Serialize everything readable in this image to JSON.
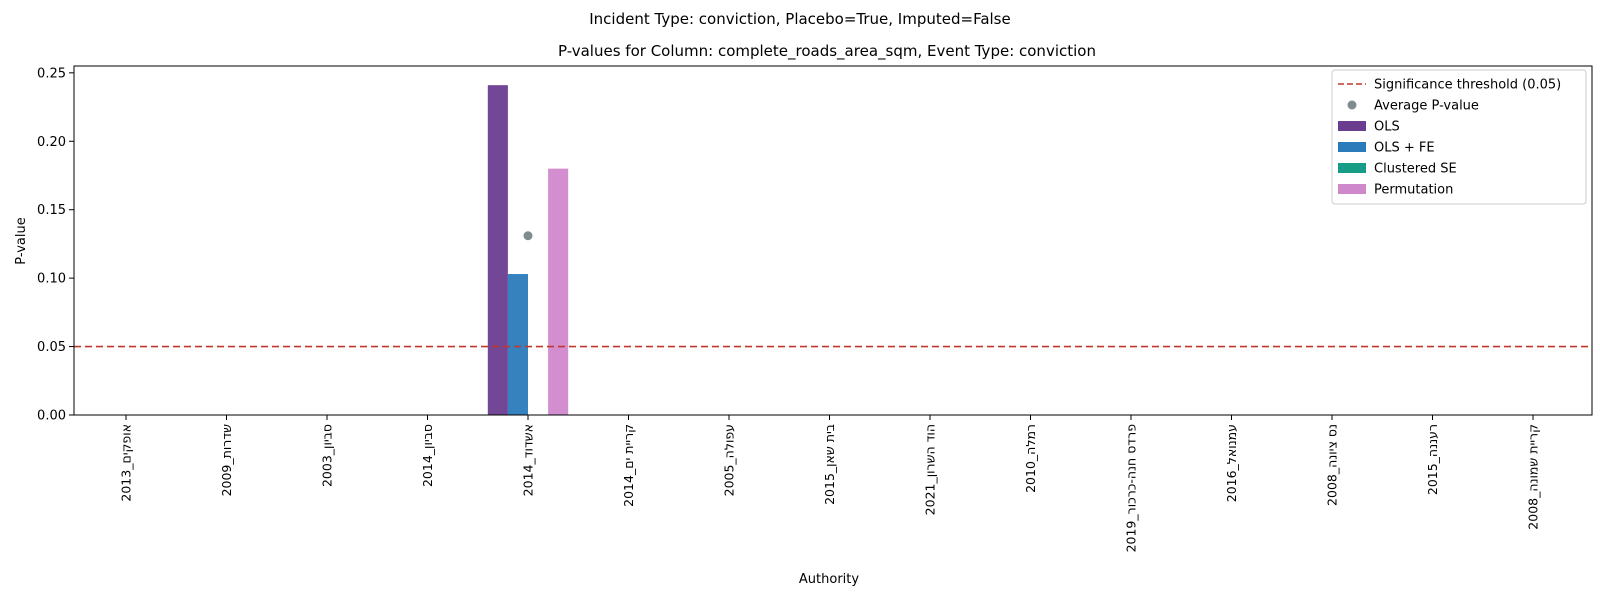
{
  "figure": {
    "suptitle": "Incident Type: conviction, Placebo=True, Imputed=False"
  },
  "chart_data": {
    "type": "bar",
    "title": "P-values for Column: complete_roads_area_sqm, Event Type: conviction",
    "xlabel": "Authority",
    "ylabel": "P-value",
    "ylim": [
      0,
      0.255
    ],
    "yticks": [
      "0.00",
      "0.05",
      "0.10",
      "0.15",
      "0.20",
      "0.25"
    ],
    "grid": false,
    "legend_position": "top-right",
    "categories": [
      "אופקים_2013",
      "שדרות_2009",
      "סביון_2003",
      "סביון_2014",
      "אשדוד_2014",
      "קריית ים_2014",
      "עפולה_2005",
      "בית שאן_2015",
      "הוד השרון_2021",
      "רמלה_2010",
      "פרדס חנה-כרכור_2019",
      "עמנואל_2016",
      "נס ציונה_2008",
      "רעננה_2015",
      "קריית שמונה_2008"
    ],
    "series": [
      {
        "name": "OLS",
        "color": "#6a3d8f",
        "values": [
          null,
          null,
          null,
          null,
          0.241,
          null,
          null,
          null,
          null,
          null,
          null,
          null,
          null,
          null,
          null
        ]
      },
      {
        "name": "OLS + FE",
        "color": "#2b7bba",
        "values": [
          null,
          null,
          null,
          null,
          0.103,
          null,
          null,
          null,
          null,
          null,
          null,
          null,
          null,
          null,
          null
        ]
      },
      {
        "name": "Clustered SE",
        "color": "#179c86",
        "values": [
          null,
          null,
          null,
          null,
          null,
          null,
          null,
          null,
          null,
          null,
          null,
          null,
          null,
          null,
          null
        ]
      },
      {
        "name": "Permutation",
        "color": "#d088cc",
        "values": [
          null,
          null,
          null,
          null,
          0.18,
          null,
          null,
          null,
          null,
          null,
          null,
          null,
          null,
          null,
          null
        ]
      }
    ],
    "average_points": {
      "name": "Average P-value",
      "color": "#7f8c8d",
      "values": [
        null,
        null,
        null,
        null,
        0.131,
        null,
        null,
        null,
        null,
        null,
        null,
        null,
        null,
        null,
        null
      ]
    },
    "threshold": {
      "name": "Significance threshold (0.05)",
      "value": 0.05,
      "color": "#c0392b"
    }
  }
}
